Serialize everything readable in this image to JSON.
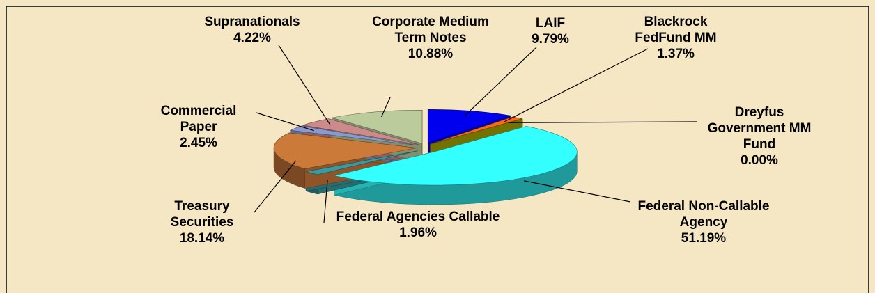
{
  "chart_data": {
    "type": "pie3d",
    "categories": [
      "LAIF",
      "Blackrock FedFund MM",
      "Dreyfus Government MM Fund",
      "Federal Non-Callable Agency",
      "Federal Agencies Callable",
      "Treasury Securities",
      "Commercial Paper",
      "Supranationals",
      "Corporate Medium Term Notes"
    ],
    "values": [
      9.79,
      1.37,
      0.0,
      51.19,
      1.96,
      18.14,
      2.45,
      4.22,
      10.88
    ],
    "value_labels": [
      "9.79%",
      "1.37%",
      "0.00%",
      "51.19%",
      "1.96%",
      "18.14%",
      "2.45%",
      "4.22%",
      "10.88%"
    ],
    "colors": [
      "#0000ee",
      "#ff6a10",
      "#a3a300",
      "#33ffff",
      "#3a9aa0",
      "#cc7a3a",
      "#8a9ad0",
      "#cc8a8a",
      "#bccb9c"
    ]
  }
}
